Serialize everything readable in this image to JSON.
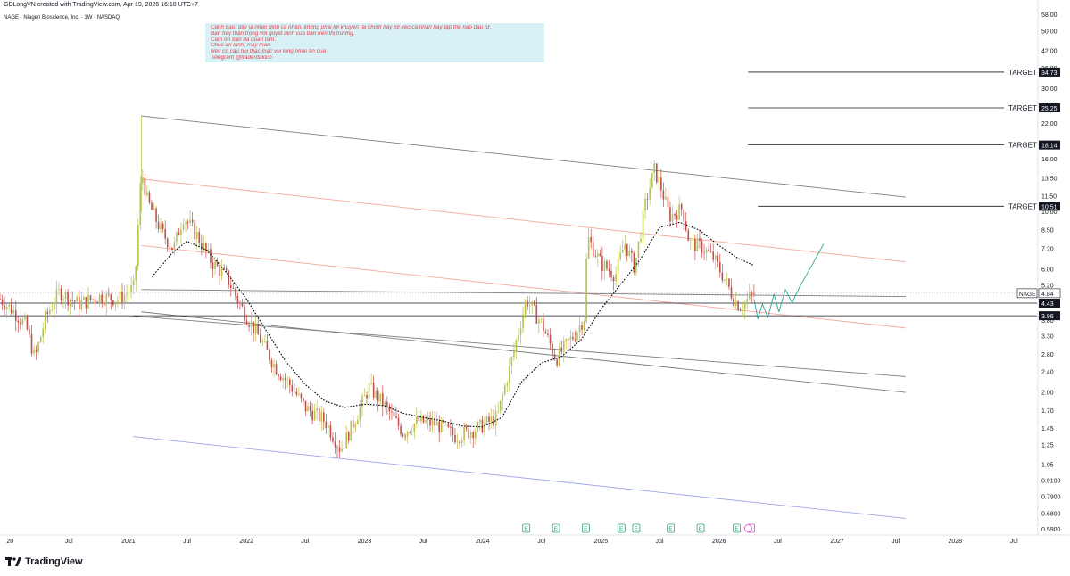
{
  "header": {
    "created_by": "GDLongVN created with TradingView.com, Apr 19, 2026 16:10 UTC+7",
    "symbol_line": "NAGE · Niagen Bioscience, Inc. · 1W · NASDAQ"
  },
  "note": {
    "lines": [
      "Cảnh báo: đây là nhận định cá nhân, không phải lời khuyên tài chính hay lời kéo cá nhân hay tập thể nào đầu tư.",
      "Bạn hãy thận trọng với quyết định của bạn trên thị trường.",
      "Cảm ơn bạn đã quan tâm.",
      "Chúc an lành, may mắn.",
      "Nếu có câu hỏi thắc mắc vui lòng nhắn tin qua",
      "Telegram @traderdukich"
    ]
  },
  "branding": {
    "logo_text": "TradingView"
  },
  "chart_data": {
    "type": "candlestick",
    "symbol": "NAGE",
    "timeframe": "1W",
    "exchange": "NASDAQ",
    "y_scale": "log",
    "ylim": [
      0.57,
      62
    ],
    "x_range": [
      "2019-12-01",
      "2028-09-10"
    ],
    "price_ticks": [
      58.0,
      50.0,
      42.0,
      36.0,
      30.0,
      26.0,
      22.0,
      18.0,
      16.0,
      13.5,
      11.5,
      10.0,
      8.5,
      7.2,
      6.0,
      5.2,
      4.4,
      3.8,
      3.3,
      2.8,
      2.4,
      2.0,
      1.7,
      1.45,
      1.25,
      1.05,
      0.91,
      0.79,
      0.68,
      0.59
    ],
    "time_labels": [
      {
        "date": "2020-01-01",
        "label": "20"
      },
      {
        "date": "2020-07-01",
        "label": "Jul"
      },
      {
        "date": "2021-01-01",
        "label": "2021"
      },
      {
        "date": "2021-07-01",
        "label": "Jul"
      },
      {
        "date": "2022-01-01",
        "label": "2022"
      },
      {
        "date": "2022-07-01",
        "label": "Jul"
      },
      {
        "date": "2023-01-01",
        "label": "2023"
      },
      {
        "date": "2023-07-01",
        "label": "Jul"
      },
      {
        "date": "2024-01-01",
        "label": "2024"
      },
      {
        "date": "2024-07-01",
        "label": "Jul"
      },
      {
        "date": "2025-01-01",
        "label": "2025"
      },
      {
        "date": "2025-07-01",
        "label": "Jul"
      },
      {
        "date": "2026-01-01",
        "label": "2026"
      },
      {
        "date": "2026-07-01",
        "label": "Jul"
      },
      {
        "date": "2027-01-01",
        "label": "2027"
      },
      {
        "date": "2027-07-01",
        "label": "Jul"
      },
      {
        "date": "2028-01-01",
        "label": "2028"
      },
      {
        "date": "2028-07-01",
        "label": "Jul"
      }
    ],
    "price_path": [
      [
        "2019-12-01",
        4.6
      ],
      [
        "2020-01-15",
        4.1
      ],
      [
        "2020-02-20",
        3.6
      ],
      [
        "2020-03-18",
        2.7
      ],
      [
        "2020-04-20",
        3.9
      ],
      [
        "2020-06-01",
        4.9
      ],
      [
        "2020-08-01",
        4.4
      ],
      [
        "2020-10-01",
        4.7
      ],
      [
        "2020-12-01",
        4.6
      ],
      [
        "2021-01-20",
        5.1
      ],
      [
        "2021-02-10",
        14.5
      ],
      [
        "2021-03-01",
        11.0
      ],
      [
        "2021-04-15",
        8.3
      ],
      [
        "2021-05-20",
        7.2
      ],
      [
        "2021-06-20",
        9.6
      ],
      [
        "2021-08-01",
        8.1
      ],
      [
        "2021-09-15",
        6.4
      ],
      [
        "2021-11-01",
        5.6
      ],
      [
        "2021-12-15",
        4.3
      ],
      [
        "2022-02-01",
        3.4
      ],
      [
        "2022-04-01",
        2.5
      ],
      [
        "2022-05-20",
        2.1
      ],
      [
        "2022-07-01",
        1.75
      ],
      [
        "2022-09-01",
        1.55
      ],
      [
        "2022-10-20",
        1.2
      ],
      [
        "2022-12-15",
        1.7
      ],
      [
        "2023-01-15",
        2.1
      ],
      [
        "2023-03-01",
        1.8
      ],
      [
        "2023-05-01",
        1.4
      ],
      [
        "2023-06-15",
        1.55
      ],
      [
        "2023-08-15",
        1.5
      ],
      [
        "2023-10-10",
        1.35
      ],
      [
        "2023-12-15",
        1.45
      ],
      [
        "2024-02-15",
        1.6
      ],
      [
        "2024-04-01",
        2.7
      ],
      [
        "2024-05-15",
        4.6
      ],
      [
        "2024-07-01",
        3.7
      ],
      [
        "2024-08-15",
        2.7
      ],
      [
        "2024-10-15",
        3.4
      ],
      [
        "2024-11-10",
        3.9
      ],
      [
        "2024-11-20",
        8.0
      ],
      [
        "2025-01-01",
        6.3
      ],
      [
        "2025-02-15",
        5.7
      ],
      [
        "2025-03-15",
        7.6
      ],
      [
        "2025-04-15",
        6.1
      ],
      [
        "2025-05-20",
        11.0
      ],
      [
        "2025-06-15",
        14.5
      ],
      [
        "2025-07-05",
        12.5
      ],
      [
        "2025-08-01",
        9.6
      ],
      [
        "2025-09-10",
        10.3
      ],
      [
        "2025-10-01",
        7.6
      ],
      [
        "2025-11-10",
        7.3
      ],
      [
        "2025-12-15",
        6.6
      ],
      [
        "2026-01-15",
        5.6
      ],
      [
        "2026-02-20",
        4.5
      ],
      [
        "2026-03-10",
        4.3
      ],
      [
        "2026-04-19",
        4.84
      ]
    ],
    "moving_average": [
      [
        "2021-03-15",
        5.6
      ],
      [
        "2021-05-15",
        6.9
      ],
      [
        "2021-07-01",
        7.7
      ],
      [
        "2021-09-01",
        7.1
      ],
      [
        "2021-11-01",
        5.8
      ],
      [
        "2022-01-01",
        4.6
      ],
      [
        "2022-03-01",
        3.5
      ],
      [
        "2022-05-01",
        2.65
      ],
      [
        "2022-07-01",
        2.15
      ],
      [
        "2022-09-01",
        1.85
      ],
      [
        "2022-11-01",
        1.75
      ],
      [
        "2023-01-01",
        1.8
      ],
      [
        "2023-03-01",
        1.78
      ],
      [
        "2023-05-01",
        1.66
      ],
      [
        "2023-07-01",
        1.6
      ],
      [
        "2023-09-01",
        1.55
      ],
      [
        "2023-11-01",
        1.48
      ],
      [
        "2024-01-01",
        1.47
      ],
      [
        "2024-03-01",
        1.6
      ],
      [
        "2024-05-01",
        2.2
      ],
      [
        "2024-07-01",
        2.6
      ],
      [
        "2024-09-01",
        2.75
      ],
      [
        "2024-11-01",
        3.2
      ],
      [
        "2025-01-01",
        4.2
      ],
      [
        "2025-03-01",
        5.2
      ],
      [
        "2025-05-01",
        6.5
      ],
      [
        "2025-07-01",
        8.7
      ],
      [
        "2025-09-01",
        9.1
      ],
      [
        "2025-11-01",
        8.5
      ],
      [
        "2026-01-01",
        7.4
      ],
      [
        "2026-03-01",
        6.6
      ],
      [
        "2026-04-19",
        6.2
      ]
    ],
    "channel_lines": [
      {
        "color": "#7d7d7d",
        "from": [
          "2021-02-10",
          23.5
        ],
        "to": [
          "2027-08-01",
          11.4
        ]
      },
      {
        "color": "#f2a89a",
        "from": [
          "2021-02-10",
          13.4
        ],
        "to": [
          "2027-08-01",
          6.4
        ]
      },
      {
        "color": "#f2a89a",
        "from": [
          "2021-02-10",
          7.4
        ],
        "to": [
          "2027-08-01",
          3.55
        ]
      },
      {
        "color": "#7d7d7d",
        "from": [
          "2021-02-10",
          4.1
        ],
        "to": [
          "2027-08-01",
          2.0
        ]
      },
      {
        "color": "#7d7d7d",
        "from": [
          "2021-02-10",
          5.0
        ],
        "to": [
          "2027-08-01",
          4.7
        ]
      },
      {
        "color": "#7d7d7d",
        "from": [
          "2021-01-15",
          3.95
        ],
        "to": [
          "2027-08-01",
          2.3
        ]
      },
      {
        "color": "#9fa8e6",
        "from": [
          "2021-01-15",
          1.35
        ],
        "to": [
          "2027-08-01",
          0.65
        ]
      }
    ],
    "projection_path": [
      [
        "2026-04-19",
        4.6
      ],
      [
        "2026-05-01",
        3.85
      ],
      [
        "2026-05-15",
        4.4
      ],
      [
        "2026-06-01",
        3.9
      ],
      [
        "2026-06-20",
        4.8
      ],
      [
        "2026-07-05",
        4.1
      ],
      [
        "2026-07-25",
        5.0
      ],
      [
        "2026-08-15",
        4.45
      ],
      [
        "2026-09-10",
        5.2
      ],
      [
        "2026-10-15",
        6.2
      ],
      [
        "2026-11-20",
        7.5
      ]
    ],
    "horizontal_levels": [
      {
        "value": 4.43,
        "label": "4.43"
      },
      {
        "value": 3.96,
        "label": "3.96"
      }
    ],
    "targets": [
      {
        "value": 34.73,
        "label": "TARGET",
        "price": "34.73",
        "start": "2026-04-01"
      },
      {
        "value": 25.25,
        "label": "TARGET",
        "price": "25.25",
        "start": "2026-04-01"
      },
      {
        "value": 18.14,
        "label": "TARGET",
        "price": "18.14",
        "start": "2026-04-01"
      },
      {
        "value": 10.51,
        "label": "TARGET",
        "price": "10.51",
        "start": "2026-05-01"
      }
    ],
    "last_price": {
      "symbol": "NAGE",
      "value": 4.84,
      "label": "4.84"
    },
    "event_markers": [
      {
        "date": "2024-05-15",
        "label": "E"
      },
      {
        "date": "2024-08-15",
        "label": "E"
      },
      {
        "date": "2024-11-15",
        "label": "E"
      },
      {
        "date": "2025-03-05",
        "label": "E"
      },
      {
        "date": "2025-04-20",
        "label": "E"
      },
      {
        "date": "2025-08-05",
        "label": "E"
      },
      {
        "date": "2025-11-05",
        "label": "E"
      },
      {
        "date": "2026-02-25",
        "label": "E"
      },
      {
        "date": "2026-04-10",
        "label": "E"
      }
    ],
    "colors": {
      "up": "#b8c24a",
      "down": "#c0504d",
      "ma": "#000000",
      "projection": "#2aa59a",
      "target_line": "#131722",
      "label_bg": "#131722",
      "event_green": "#2ba770",
      "event_magenta": "#d451c7"
    }
  }
}
